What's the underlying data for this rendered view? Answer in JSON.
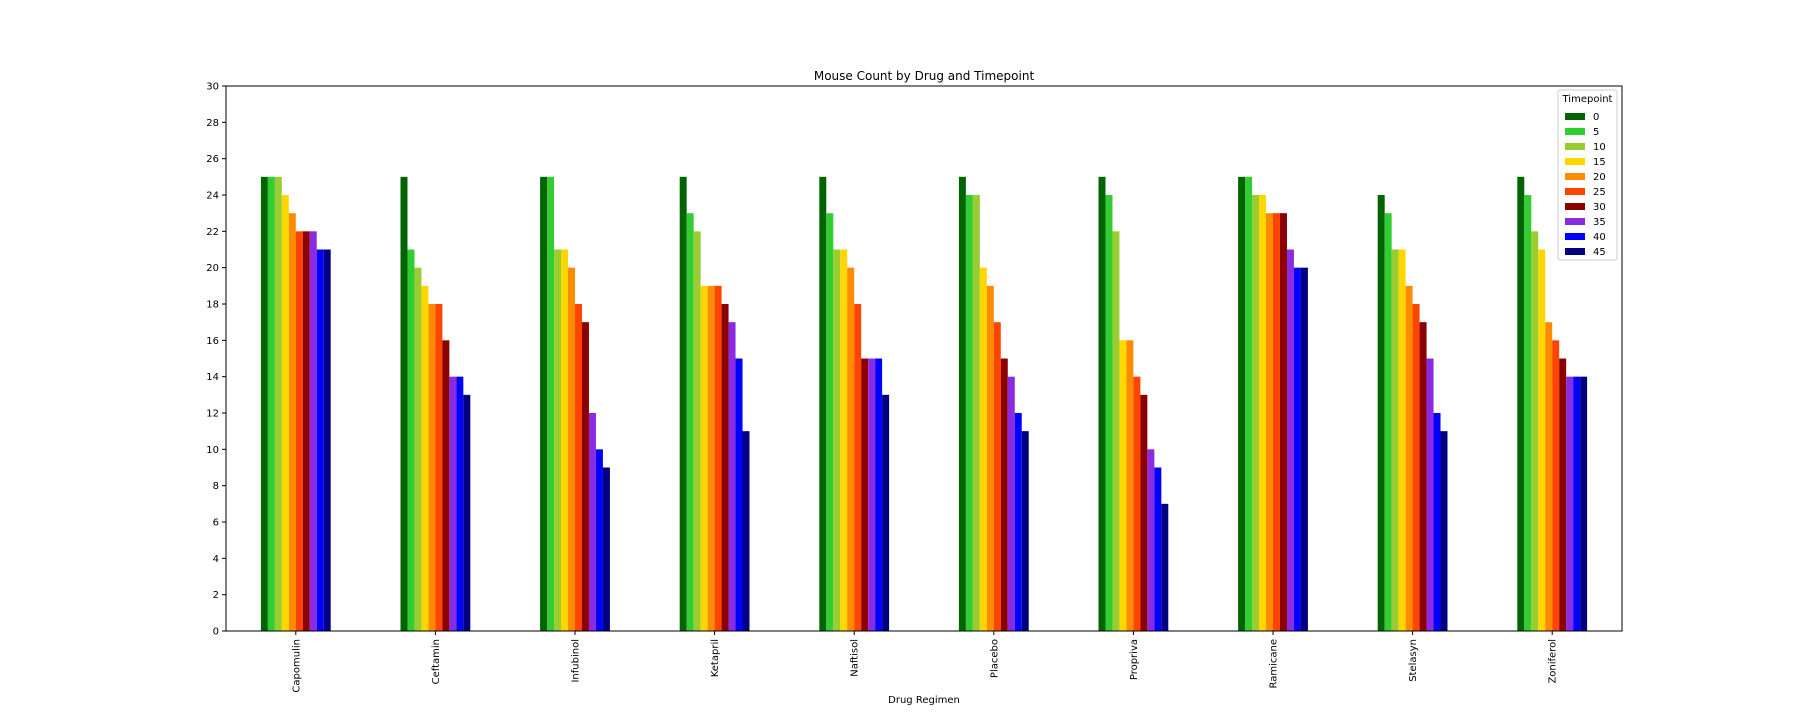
{
  "chart_data": {
    "type": "bar",
    "title": "Mouse Count by Drug and Timepoint",
    "xlabel": "Drug Regimen",
    "ylabel": "",
    "ylim": [
      0,
      30
    ],
    "yticks": [
      0,
      2,
      4,
      6,
      8,
      10,
      12,
      14,
      16,
      18,
      20,
      22,
      24,
      26,
      28,
      30
    ],
    "grid": false,
    "legend": {
      "title": "Timepoint",
      "placement": "top-right"
    },
    "categories": [
      "Capomulin",
      "Ceftamin",
      "Infubinol",
      "Ketapril",
      "Naftisol",
      "Placebo",
      "Propriva",
      "Ramicane",
      "Stelasyn",
      "Zoniferol"
    ],
    "series": [
      {
        "name": "0",
        "color": "#006400",
        "values": [
          25,
          25,
          25,
          25,
          25,
          25,
          25,
          25,
          24,
          25
        ]
      },
      {
        "name": "5",
        "color": "#32cd32",
        "values": [
          25,
          21,
          25,
          23,
          23,
          24,
          24,
          25,
          23,
          24
        ]
      },
      {
        "name": "10",
        "color": "#9acd32",
        "values": [
          25,
          20,
          21,
          22,
          21,
          24,
          22,
          24,
          21,
          22
        ]
      },
      {
        "name": "15",
        "color": "#ffd700",
        "values": [
          24,
          19,
          21,
          19,
          21,
          20,
          16,
          24,
          21,
          21
        ]
      },
      {
        "name": "20",
        "color": "#ff8c00",
        "values": [
          23,
          18,
          20,
          19,
          20,
          19,
          16,
          23,
          19,
          17
        ]
      },
      {
        "name": "25",
        "color": "#ff4500",
        "values": [
          22,
          18,
          18,
          19,
          18,
          17,
          14,
          23,
          18,
          16
        ]
      },
      {
        "name": "30",
        "color": "#8b0000",
        "values": [
          22,
          16,
          17,
          18,
          15,
          15,
          13,
          23,
          17,
          15
        ]
      },
      {
        "name": "35",
        "color": "#8a2be2",
        "values": [
          22,
          14,
          12,
          17,
          15,
          14,
          10,
          21,
          15,
          14
        ]
      },
      {
        "name": "40",
        "color": "#0000ff",
        "values": [
          21,
          14,
          10,
          15,
          15,
          12,
          9,
          20,
          12,
          14
        ]
      },
      {
        "name": "45",
        "color": "#000080",
        "values": [
          21,
          13,
          9,
          11,
          13,
          11,
          7,
          20,
          11,
          14
        ]
      }
    ]
  }
}
